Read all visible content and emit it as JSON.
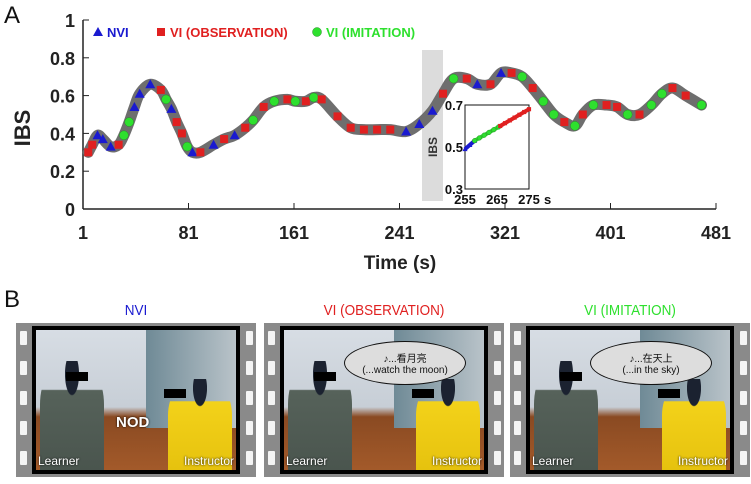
{
  "panel_a_label": "A",
  "panel_b_label": "B",
  "chart_data": [
    {
      "type": "scatter",
      "title": "",
      "xlabel": "Time (s)",
      "ylabel": "IBS",
      "xlim": [
        1,
        481
      ],
      "ylim": [
        0,
        1
      ],
      "xticks": [
        "1",
        "81",
        "161",
        "241",
        "321",
        "401",
        "481"
      ],
      "yticks": [
        "0",
        "0.2",
        "0.4",
        "0.6",
        "0.8",
        "1"
      ],
      "legend_position": "top-left",
      "highlight_band": [
        261,
        276
      ],
      "series": [
        {
          "name": "NVI",
          "color": "#1a1ad0",
          "marker": "triangle"
        },
        {
          "name": "VI (OBSERVATION)",
          "color": "#e02020",
          "marker": "square"
        },
        {
          "name": "VI (IMITATION)",
          "color": "#2ee02e",
          "marker": "circle"
        }
      ],
      "points": [
        [
          5,
          0.3,
          1
        ],
        [
          8,
          0.34,
          1
        ],
        [
          12,
          0.39,
          0
        ],
        [
          16,
          0.37,
          0
        ],
        [
          22,
          0.33,
          0
        ],
        [
          28,
          0.34,
          1
        ],
        [
          32,
          0.39,
          2
        ],
        [
          36,
          0.46,
          2
        ],
        [
          40,
          0.54,
          0
        ],
        [
          44,
          0.61,
          0
        ],
        [
          52,
          0.66,
          0
        ],
        [
          60,
          0.63,
          1
        ],
        [
          64,
          0.58,
          2
        ],
        [
          68,
          0.53,
          0
        ],
        [
          72,
          0.46,
          1
        ],
        [
          76,
          0.4,
          1
        ],
        [
          80,
          0.33,
          2
        ],
        [
          84,
          0.3,
          0
        ],
        [
          90,
          0.3,
          1
        ],
        [
          100,
          0.34,
          0
        ],
        [
          108,
          0.37,
          1
        ],
        [
          116,
          0.39,
          0
        ],
        [
          124,
          0.43,
          1
        ],
        [
          130,
          0.47,
          2
        ],
        [
          138,
          0.54,
          1
        ],
        [
          146,
          0.57,
          2
        ],
        [
          156,
          0.58,
          1
        ],
        [
          162,
          0.57,
          2
        ],
        [
          170,
          0.57,
          1
        ],
        [
          176,
          0.59,
          2
        ],
        [
          182,
          0.58,
          1
        ],
        [
          194,
          0.49,
          1
        ],
        [
          204,
          0.43,
          1
        ],
        [
          214,
          0.42,
          1
        ],
        [
          224,
          0.42,
          1
        ],
        [
          234,
          0.42,
          1
        ],
        [
          246,
          0.41,
          0
        ],
        [
          256,
          0.45,
          0
        ],
        [
          266,
          0.52,
          0
        ],
        [
          274,
          0.61,
          1
        ],
        [
          282,
          0.69,
          2
        ],
        [
          292,
          0.69,
          1
        ],
        [
          300,
          0.66,
          0
        ],
        [
          310,
          0.66,
          1
        ],
        [
          318,
          0.72,
          0
        ],
        [
          326,
          0.72,
          1
        ],
        [
          334,
          0.7,
          2
        ],
        [
          342,
          0.64,
          1
        ],
        [
          350,
          0.57,
          2
        ],
        [
          358,
          0.5,
          2
        ],
        [
          366,
          0.46,
          1
        ],
        [
          374,
          0.44,
          2
        ],
        [
          380,
          0.5,
          1
        ],
        [
          388,
          0.55,
          2
        ],
        [
          398,
          0.55,
          1
        ],
        [
          406,
          0.54,
          1
        ],
        [
          414,
          0.5,
          2
        ],
        [
          423,
          0.5,
          1
        ],
        [
          432,
          0.55,
          2
        ],
        [
          440,
          0.61,
          2
        ],
        [
          448,
          0.64,
          1
        ],
        [
          458,
          0.6,
          1
        ],
        [
          470,
          0.55,
          2
        ]
      ]
    },
    {
      "type": "line",
      "title": "inset",
      "ylabel": "IBS",
      "xlabel_unit": "s",
      "xlim": [
        255,
        275
      ],
      "ylim": [
        0.3,
        0.7
      ],
      "xticks": [
        "255",
        "265",
        "275"
      ],
      "yticks": [
        "0.3",
        "0.5",
        "0.7"
      ],
      "segments": [
        {
          "series": 0,
          "from": [
            255,
            0.49
          ],
          "to": [
            258,
            0.53
          ]
        },
        {
          "series": 2,
          "from": [
            258,
            0.53
          ],
          "to": [
            266,
            0.6
          ]
        },
        {
          "series": 1,
          "from": [
            266,
            0.6
          ],
          "to": [
            275,
            0.68
          ]
        }
      ]
    }
  ],
  "frames": [
    {
      "title": "NVI",
      "title_color": "#1a1ad0",
      "learner": "Learner",
      "instructor": "Instructor",
      "overlay": "NOD"
    },
    {
      "title": "VI (OBSERVATION)",
      "title_color": "#e02020",
      "learner": "Learner",
      "instructor": "Instructor",
      "bubble_line1": "♪...看月亮",
      "bubble_line2": "(...watch the moon)"
    },
    {
      "title": "VI (IMITATION)",
      "title_color": "#2ee02e",
      "learner": "Learner",
      "instructor": "Instructor",
      "bubble_line1": "♪...在天上",
      "bubble_line2": "(...in the sky)"
    }
  ]
}
